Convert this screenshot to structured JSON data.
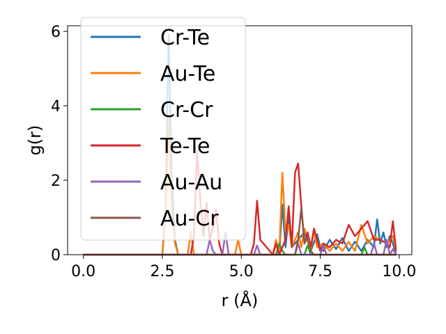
{
  "chart_data": {
    "type": "line",
    "xlabel": "r (Å)",
    "ylabel": "g(r)",
    "xlim": [
      -0.5,
      10.4
    ],
    "ylim": [
      0,
      6.15
    ],
    "xticks": [
      0.0,
      2.5,
      5.0,
      7.5,
      10.0
    ],
    "xtick_labels": [
      "0.0",
      "2.5",
      "5.0",
      "7.5",
      "10.0"
    ],
    "yticks": [
      0,
      2,
      4,
      6
    ],
    "ytick_labels": [
      "0",
      "2",
      "4",
      "6"
    ],
    "grid": false,
    "legend_position": "top-left",
    "series": [
      {
        "name": "Cr-Te",
        "color": "#1f77b4",
        "x": [
          0,
          2.5,
          2.6,
          2.7,
          2.8,
          2.9,
          3.0,
          5.0,
          6.2,
          6.3,
          6.4,
          6.5,
          6.6,
          7.0,
          7.2,
          7.4,
          7.5,
          7.6,
          7.8,
          8.0,
          8.2,
          8.4,
          8.6,
          8.8,
          9.0,
          9.2,
          9.3,
          9.4,
          9.5,
          9.6,
          9.7,
          9.8,
          9.9
        ],
        "y": [
          0,
          0,
          1.2,
          5.9,
          2.0,
          0.4,
          0,
          0,
          0,
          1.35,
          0.2,
          1.05,
          0.2,
          0.6,
          0.1,
          0.55,
          0.2,
          0.1,
          0.4,
          0.15,
          0.45,
          0.1,
          0.35,
          0.1,
          0.4,
          0.2,
          0.95,
          0.3,
          0.6,
          0.2,
          0.5,
          0.3,
          0
        ]
      },
      {
        "name": "Au-Te",
        "color": "#ff7f0e",
        "x": [
          0,
          2.5,
          2.6,
          2.7,
          2.8,
          2.9,
          3.0,
          3.3,
          3.4,
          3.5,
          4.8,
          4.9,
          5.0,
          6.0,
          6.1,
          6.2,
          6.3,
          6.4,
          6.5,
          6.6,
          6.8,
          6.9,
          7.0,
          7.2,
          7.3,
          7.4,
          7.6,
          7.8,
          8.0,
          8.2,
          8.4,
          8.6,
          8.8,
          9.0,
          9.2,
          9.4,
          9.6,
          9.8,
          9.9
        ],
        "y": [
          0,
          0,
          1.0,
          3.7,
          1.1,
          0.3,
          0,
          0,
          0.6,
          0,
          0,
          0.4,
          0,
          0,
          0.4,
          0,
          2.2,
          0.6,
          0.8,
          0.2,
          0.6,
          0.2,
          0.7,
          0.1,
          0.65,
          0.2,
          0.3,
          0.1,
          0.3,
          0.1,
          0.35,
          0.1,
          0.8,
          0.3,
          0.5,
          0.4,
          0.3,
          0.5,
          0.1
        ]
      },
      {
        "name": "Cr-Cr",
        "color": "#2ca02c",
        "x": [
          0,
          6.1,
          6.2,
          6.3,
          6.4,
          7.0,
          7.1,
          7.2,
          8.8,
          8.9,
          9.0,
          9.9
        ],
        "y": [
          0,
          0,
          0.3,
          0.1,
          0,
          0,
          0.25,
          0,
          0,
          0.2,
          0,
          0
        ]
      },
      {
        "name": "Te-Te",
        "color": "#d62728",
        "x": [
          0,
          3.4,
          3.5,
          3.6,
          3.7,
          3.8,
          3.9,
          4.0,
          4.1,
          4.2,
          4.3,
          4.4,
          5.3,
          5.4,
          5.5,
          5.6,
          6.0,
          6.1,
          6.2,
          6.4,
          6.5,
          6.6,
          6.7,
          6.8,
          6.9,
          7.0,
          7.1,
          7.2,
          7.3,
          7.4,
          7.5,
          7.6,
          7.8,
          8.0,
          8.2,
          8.4,
          8.6,
          8.8,
          9.0,
          9.2,
          9.4,
          9.6,
          9.7,
          9.8,
          9.9
        ],
        "y": [
          0,
          0,
          0.5,
          2.8,
          1.5,
          0.5,
          1.4,
          0.4,
          0.7,
          1.2,
          0.3,
          0,
          0,
          0.3,
          1.45,
          0.4,
          0,
          0.3,
          0,
          0.4,
          1.3,
          0.2,
          2.2,
          2.45,
          1.3,
          0.3,
          0.6,
          0.2,
          0.7,
          0.4,
          0.1,
          0.3,
          0.2,
          0.4,
          0.3,
          0.8,
          0.5,
          0.7,
          0.9,
          0.4,
          0.4,
          0.3,
          0.2,
          0.9,
          0.1
        ]
      },
      {
        "name": "Au-Au",
        "color": "#9467bd",
        "x": [
          0,
          3.9,
          4.0,
          4.1,
          4.2,
          4.4,
          4.5,
          4.6,
          5.4,
          5.5,
          5.6,
          6.7,
          6.8,
          6.9,
          7.5,
          7.6,
          7.7,
          9.1,
          9.2,
          9.3,
          9.5,
          9.6,
          9.7,
          9.8,
          9.9
        ],
        "y": [
          0,
          0,
          0.4,
          0.1,
          0,
          0,
          0.6,
          0,
          0,
          0.25,
          0,
          0,
          0.3,
          0,
          0,
          0.25,
          0,
          0,
          0.3,
          0,
          0,
          0.4,
          0,
          0.15,
          0
        ]
      },
      {
        "name": "Au-Cr",
        "color": "#8c564b",
        "x": [
          0,
          6.7,
          6.8,
          6.9,
          7.0,
          7.1,
          7.2,
          7.3,
          9.9
        ],
        "y": [
          0,
          0,
          0.4,
          1.25,
          0.3,
          0.5,
          0.1,
          0,
          0
        ]
      }
    ]
  }
}
